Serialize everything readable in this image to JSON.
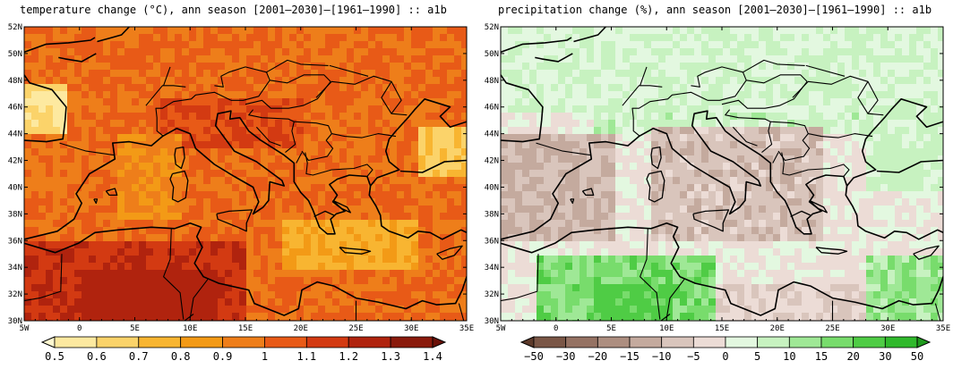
{
  "panels": [
    {
      "title": "temperature change (°C), ann season [2001–2030]–[1961–1990] :: a1b",
      "colorbar": {
        "labels": [
          "0.5",
          "0.6",
          "0.7",
          "0.8",
          "0.9",
          "1",
          "1.1",
          "1.2",
          "1.3",
          "1.4"
        ],
        "colors": [
          "#fff8d0",
          "#fde9a0",
          "#fbd36a",
          "#f8b531",
          "#f39a16",
          "#ee7e1a",
          "#e85a17",
          "#d33a12",
          "#b0230e",
          "#8a1a0c",
          "#6b1008"
        ]
      },
      "palette": {
        "low": "#fde9a0",
        "mid": "#f39a16",
        "high": "#e85a17",
        "hot": "#c62a10"
      }
    },
    {
      "title": "precipitation change (%), ann season [2001–2030]–[1961–1990] :: a1b",
      "colorbar": {
        "labels": [
          "−50",
          "−30",
          "−20",
          "−15",
          "−10",
          "−5",
          "0",
          "5",
          "10",
          "15",
          "20",
          "30",
          "50"
        ],
        "colors": [
          "#5d3a2a",
          "#7a5646",
          "#957263",
          "#ad8e80",
          "#c4aa9e",
          "#d9c5bc",
          "#ecdcd6",
          "#e3f8e0",
          "#c7f2c0",
          "#9fe896",
          "#78dc6c",
          "#4fcc45",
          "#30b92c",
          "#1f9a1d"
        ]
      },
      "palette": {
        "dry": "#c4aa9e",
        "mid": "#ecdcd6",
        "wet": "#c7f2c0",
        "verywet": "#4fcc45"
      }
    }
  ],
  "axes": {
    "lat_labels": [
      "52N",
      "50N",
      "48N",
      "46N",
      "44N",
      "42N",
      "40N",
      "38N",
      "36N",
      "34N",
      "32N",
      "30N"
    ],
    "lon_labels": [
      "5W",
      "0",
      "5E",
      "10E",
      "15E",
      "20E",
      "25E",
      "30E",
      "35E"
    ]
  }
}
